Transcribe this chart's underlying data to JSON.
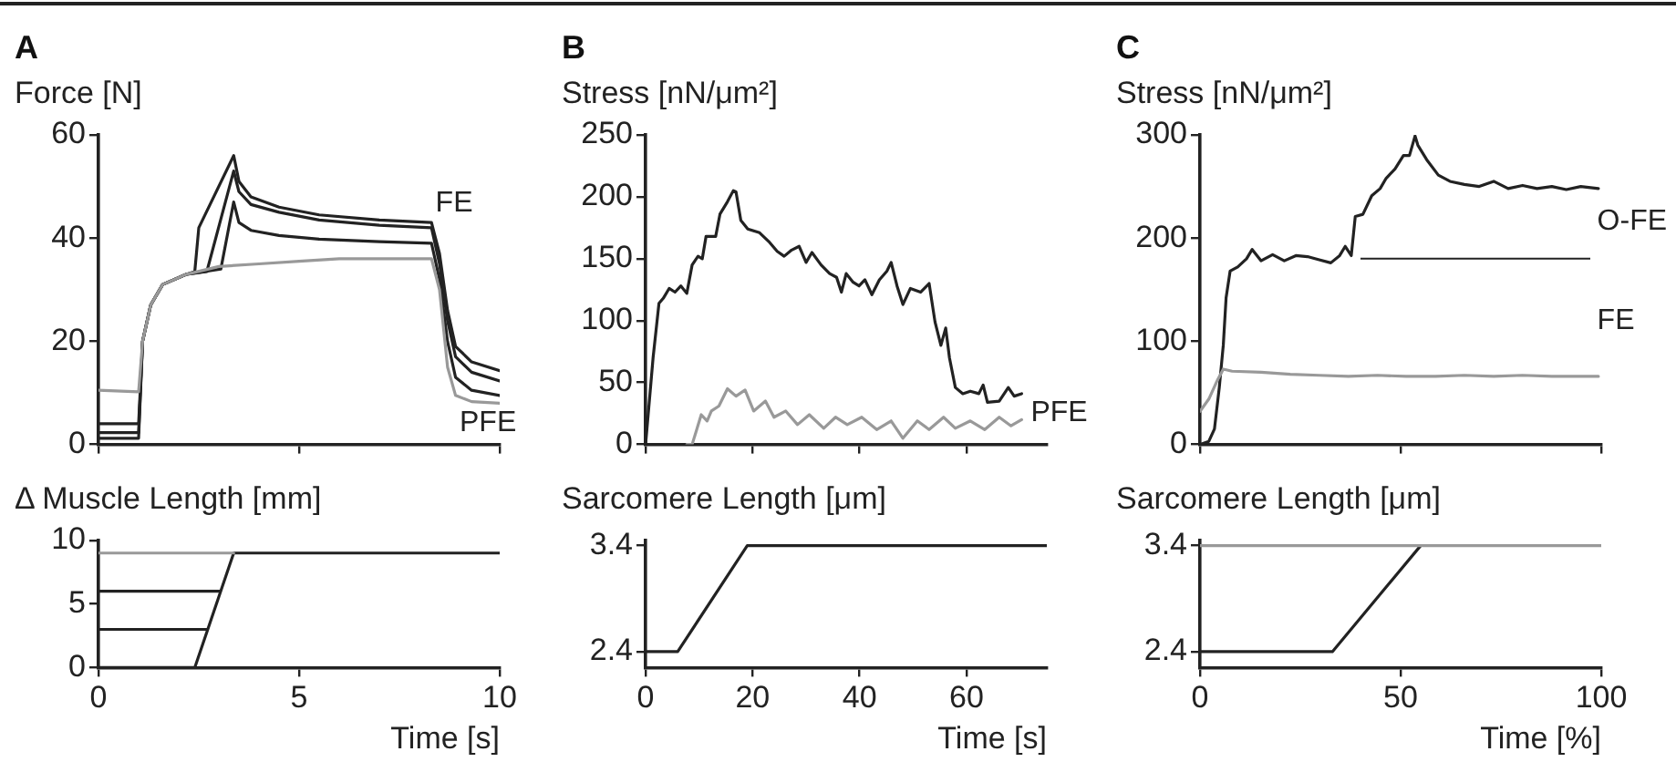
{
  "chart_data": [
    {
      "type": "line",
      "title": "A",
      "ylabel": "Force [N]",
      "xlim": [
        0,
        10
      ],
      "ylim": [
        0,
        60
      ],
      "xticks": [
        {
          "value": 0,
          "label": null
        },
        {
          "value": 5,
          "label": null
        },
        {
          "value": 10,
          "label": null
        }
      ],
      "yticks": [
        0,
        20,
        40,
        60
      ],
      "tick_labels": "y",
      "grid": false,
      "legend": false,
      "marker": "none",
      "line_style": "solid",
      "series": [
        {
          "color": "#999999",
          "x": [
            0,
            1.0,
            1.1,
            1.3,
            1.6,
            2.2,
            3,
            4,
            5,
            6,
            7,
            8.3,
            8.5,
            8.7,
            8.9,
            9.3,
            10
          ],
          "values": [
            10.5,
            10.2,
            20,
            27,
            31,
            33,
            34.5,
            35,
            35.5,
            36,
            36,
            36,
            30,
            15,
            9.5,
            8.3,
            8
          ]
        },
        {
          "color": "#222222",
          "x": [
            0,
            1.0,
            1.1,
            1.3,
            1.6,
            2.2,
            2.4,
            2.5,
            3.37,
            3.5,
            3.8,
            4.5,
            5.5,
            7,
            8.3,
            8.5,
            8.7,
            8.9,
            9.3,
            10
          ],
          "values": [
            1.2,
            1.2,
            20,
            27,
            31,
            33,
            33.5,
            42,
            56,
            51,
            48,
            46,
            44.5,
            43.5,
            43,
            37,
            26,
            19,
            16,
            14.3
          ]
        },
        {
          "color": "#222222",
          "x": [
            0,
            1.0,
            1.1,
            1.3,
            1.6,
            2.2,
            2.7,
            3.37,
            3.5,
            3.8,
            4.5,
            5.5,
            7,
            8.3,
            8.5,
            8.7,
            8.9,
            9.3,
            10
          ],
          "values": [
            2.3,
            2.3,
            20,
            27,
            31,
            33,
            33.5,
            53,
            49,
            46.5,
            45,
            43.5,
            42.5,
            42,
            35,
            24,
            17,
            14,
            12.3
          ]
        },
        {
          "color": "#222222",
          "x": [
            0,
            1.0,
            1.1,
            1.3,
            1.6,
            2.2,
            3.05,
            3.37,
            3.5,
            3.8,
            4.5,
            5.5,
            7,
            8.3,
            8.5,
            8.7,
            8.9,
            9.3,
            10
          ],
          "values": [
            4,
            4,
            20,
            27,
            31,
            33,
            34,
            47,
            43,
            41.5,
            40.5,
            39.8,
            39.3,
            39,
            32,
            20,
            13,
            10.5,
            9.5
          ]
        }
      ],
      "annotations": [
        "FE",
        "PFE"
      ]
    },
    {
      "type": "line",
      "ylabel": "Δ Muscle Length [mm]",
      "xlabel": "Time [s]",
      "xlim": [
        0,
        10
      ],
      "ylim": [
        0,
        10
      ],
      "xticks": [
        0,
        5,
        10
      ],
      "yticks": [
        0,
        5,
        10
      ],
      "grid": false,
      "legend": false,
      "marker": "none",
      "line_style": "solid",
      "series": [
        {
          "color": "#999999",
          "x": [
            0,
            3.37
          ],
          "values": [
            9,
            9
          ]
        },
        {
          "color": "#222222",
          "x": [
            0,
            2.4,
            3.37,
            10
          ],
          "values": [
            0,
            0,
            9,
            9
          ]
        },
        {
          "color": "#222222",
          "x": [
            0,
            2.7
          ],
          "values": [
            3,
            3
          ]
        },
        {
          "color": "#222222",
          "x": [
            0,
            3.03
          ],
          "values": [
            6,
            6
          ]
        }
      ]
    },
    {
      "type": "line",
      "title": "B",
      "ylabel": "Stress [nN/μm²]",
      "xlim": [
        0,
        75
      ],
      "ylim": [
        0,
        250
      ],
      "xticks": [
        {
          "value": 0,
          "label": null
        },
        {
          "value": 20,
          "label": null
        },
        {
          "value": 40,
          "label": null
        },
        {
          "value": 60,
          "label": null
        }
      ],
      "yticks": [
        0,
        50,
        100,
        150,
        200,
        250
      ],
      "tick_labels": "y",
      "grid": false,
      "legend": false,
      "marker": "none",
      "line_style": "solid",
      "series": [
        {
          "color": "#222222",
          "x": [
            0,
            1.4,
            2.5,
            3.3,
            4.4,
            5.5,
            6.6,
            7.7,
            8.7,
            9.8,
            10.6,
            11.3,
            13.1,
            13.9,
            15.3,
            16.4,
            16.9,
            17.8,
            19.1,
            21.3,
            23,
            24.6,
            25.9,
            27.3,
            28.7,
            30,
            31.1,
            32.8,
            34.4,
            35.7,
            36.6,
            37.5,
            38.8,
            39.9,
            41,
            42.3,
            43.7,
            45.1,
            45.9,
            47,
            48.1,
            49.5,
            51.4,
            53,
            54.1,
            55.2,
            56.1,
            56.8,
            57.9,
            59.3,
            60.7,
            62.3,
            63.1,
            63.9,
            66.1,
            67.8,
            68.9,
            70.3
          ],
          "values": [
            0,
            70,
            114,
            118,
            126,
            123,
            128,
            122,
            145,
            152,
            150,
            168,
            168,
            186,
            196,
            205,
            204,
            181,
            174,
            171,
            164,
            156,
            152,
            157,
            160,
            147,
            155,
            145,
            138,
            135,
            123,
            138,
            131,
            128,
            133,
            121,
            133,
            140,
            147,
            128,
            113,
            126,
            123,
            130,
            99,
            80,
            94,
            70,
            46,
            41,
            43,
            41,
            48,
            34,
            35,
            46,
            39,
            41
          ]
        },
        {
          "color": "#999999",
          "x": [
            7.7,
            8.7,
            10.4,
            11.5,
            12.3,
            13.7,
            15.3,
            16.9,
            18.6,
            20.2,
            22.4,
            24,
            26.2,
            28.4,
            30.6,
            33.3,
            35.5,
            37.7,
            40.4,
            43.2,
            45.9,
            48.1,
            50.8,
            53,
            55.7,
            57.9,
            60.7,
            63.4,
            66.1,
            68.3,
            70.3
          ],
          "values": [
            0,
            0,
            24,
            19,
            27,
            31,
            45,
            39,
            44,
            27,
            35,
            22,
            27,
            16,
            24,
            13,
            22,
            16,
            22,
            12,
            19,
            5,
            19,
            12,
            22,
            13,
            19,
            12,
            22,
            15,
            20
          ]
        }
      ],
      "annotations": [
        {
          "text": "PFE",
          "x": 70.3,
          "y": 25
        }
      ]
    },
    {
      "type": "line",
      "ylabel": "Sarcomere Length [μm]",
      "xlabel": "Time [s]",
      "xlim": [
        0,
        75
      ],
      "ylim": [
        2.25,
        3.45
      ],
      "xticks": [
        0,
        20,
        40,
        60
      ],
      "yticks": [
        2.4,
        3.4
      ],
      "grid": false,
      "legend": false,
      "marker": "none",
      "line_style": "solid",
      "series": [
        {
          "color": "#222222",
          "x": [
            0,
            6,
            19,
            75
          ],
          "values": [
            2.4,
            2.4,
            3.4,
            3.4
          ]
        }
      ]
    },
    {
      "type": "line",
      "title": "C",
      "ylabel": "Stress [nN/μm²]",
      "xlim": [
        0,
        100
      ],
      "ylim": [
        0,
        300
      ],
      "xticks": [
        {
          "value": 0,
          "label": null
        },
        {
          "value": 50,
          "label": null
        },
        {
          "value": 100,
          "label": null
        }
      ],
      "yticks": [
        0,
        100,
        200,
        300
      ],
      "tick_labels": "y",
      "grid": false,
      "legend": false,
      "marker": "none",
      "line_style": "solid",
      "series": [
        {
          "color": "#999999",
          "x": [
            0,
            2.2,
            4.3,
            5.8,
            8,
            15.2,
            22.5,
            29.7,
            37,
            44.2,
            51.4,
            58.7,
            65.9,
            73.2,
            80.4,
            87.7,
            94.9,
            99.3
          ],
          "values": [
            32,
            44,
            62,
            73,
            71,
            70,
            68,
            67,
            66,
            67,
            66,
            66,
            67,
            66,
            67,
            66,
            66,
            66
          ]
        },
        {
          "color": "#222222",
          "x": [
            0,
            2.2,
            3.6,
            4.8,
            5.8,
            6.5,
            7.5,
            9.4,
            11.6,
            13,
            15.2,
            18.1,
            21,
            23.9,
            26.8,
            29.7,
            32.6,
            34.8,
            36.2,
            37.7,
            38.7,
            40.6,
            42.8,
            44.9,
            46.4,
            48.6,
            50.7,
            52.2,
            53.6,
            54.3,
            56.5,
            59.4,
            62.3,
            65.9,
            69.6,
            73.2,
            76.8,
            80.4,
            84,
            87.7,
            91.3,
            94.9,
            99.3
          ],
          "values": [
            0,
            3,
            15,
            55,
            96,
            142,
            168,
            172,
            180,
            189,
            178,
            184,
            178,
            183,
            182,
            179,
            176,
            183,
            192,
            183,
            221,
            223,
            241,
            248,
            258,
            267,
            280,
            280,
            299,
            290,
            276,
            261,
            255,
            252,
            250,
            255,
            248,
            251,
            248,
            250,
            247,
            250,
            248
          ]
        }
      ],
      "ref_lines": [
        {
          "axis": "y",
          "value": 180,
          "color": "#222222"
        }
      ],
      "annotations": [
        "O-FE",
        "FE"
      ]
    },
    {
      "type": "line",
      "ylabel": "Sarcomere Length [μm]",
      "xlabel": "Time [%]",
      "xlim": [
        0,
        100
      ],
      "ylim": [
        2.25,
        3.45
      ],
      "xticks": [
        0,
        50,
        100
      ],
      "yticks": [
        2.4,
        3.4
      ],
      "grid": false,
      "legend": false,
      "marker": "none",
      "line_style": "solid",
      "series": [
        {
          "color": "#999999",
          "x": [
            0,
            100
          ],
          "values": [
            3.4,
            3.4
          ]
        },
        {
          "color": "#222222",
          "x": [
            0,
            33,
            55
          ],
          "values": [
            2.4,
            2.4,
            3.4
          ]
        }
      ]
    }
  ]
}
